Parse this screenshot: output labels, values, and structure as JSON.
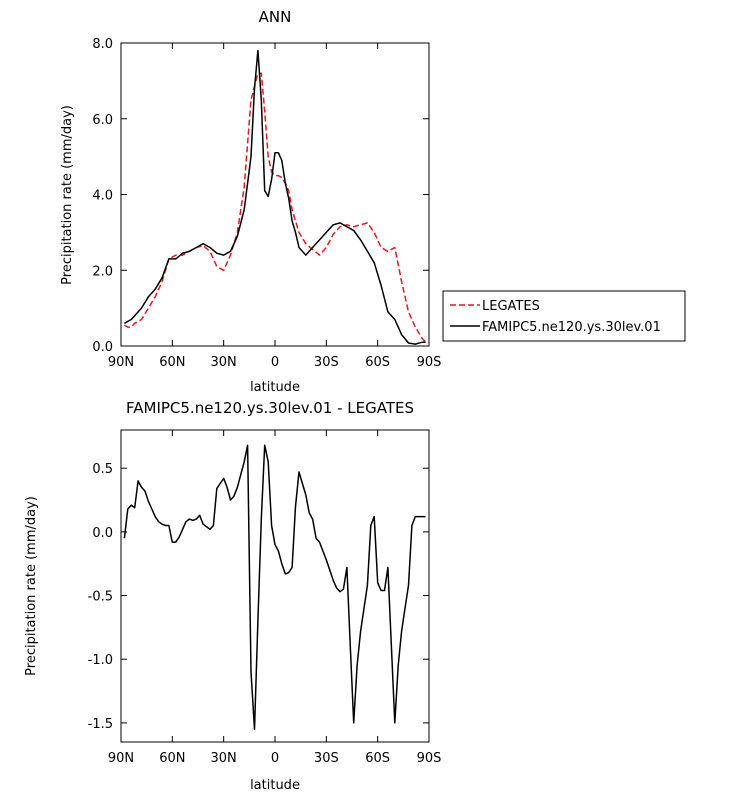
{
  "chart_data": [
    {
      "type": "line",
      "title": "ANN",
      "xlabel": "latitude",
      "ylabel": "Precipitation rate (mm/day)",
      "xlim": [
        90,
        -90
      ],
      "ylim": [
        0,
        8
      ],
      "x_ticks": [
        90,
        60,
        30,
        0,
        -30,
        -60,
        -90
      ],
      "x_tick_labels": [
        "90N",
        "60N",
        "30N",
        "0",
        "30S",
        "60S",
        "90S"
      ],
      "y_ticks": [
        0,
        2,
        4,
        6,
        8
      ],
      "y_tick_labels": [
        "0.0",
        "2.0",
        "4.0",
        "6.0",
        "8.0"
      ],
      "legend": {
        "placement": "outside-right",
        "entries": [
          {
            "label": "LEGATES",
            "color": "#e8141e",
            "style": "dashed"
          },
          {
            "label": "FAMIPC5.ne120.ys.30lev.01",
            "color": "#000000",
            "style": "solid"
          }
        ]
      },
      "series": [
        {
          "name": "LEGATES",
          "color": "#e8141e",
          "dash": true,
          "x": [
            88,
            86,
            84,
            82,
            78,
            74,
            70,
            66,
            62,
            58,
            54,
            50,
            46,
            42,
            38,
            34,
            30,
            26,
            22,
            18,
            14,
            10,
            8,
            6,
            4,
            2,
            0,
            -2,
            -4,
            -6,
            -8,
            -10,
            -12,
            -14,
            -18,
            -22,
            -26,
            -30,
            -34,
            -38,
            -42,
            -46,
            -50,
            -54,
            -58,
            -62,
            -66,
            -70,
            -74,
            -78,
            -82,
            -86,
            -89
          ],
          "y": [
            0.55,
            0.5,
            0.5,
            0.6,
            0.7,
            1.0,
            1.3,
            1.7,
            2.3,
            2.4,
            2.4,
            2.5,
            2.6,
            2.65,
            2.5,
            2.1,
            2.0,
            2.4,
            3.0,
            4.2,
            6.5,
            7.2,
            7.2,
            6.2,
            5.0,
            4.6,
            4.5,
            4.5,
            4.45,
            4.3,
            4.1,
            3.6,
            3.3,
            3.0,
            2.7,
            2.55,
            2.4,
            2.6,
            2.95,
            3.15,
            3.2,
            3.15,
            3.2,
            3.25,
            3.0,
            2.6,
            2.5,
            2.6,
            1.7,
            0.9,
            0.5,
            0.2,
            0.05
          ]
        },
        {
          "name": "FAMIPC5.ne120.ys.30lev.01",
          "color": "#000000",
          "dash": false,
          "x": [
            88,
            86,
            84,
            82,
            78,
            74,
            70,
            66,
            62,
            58,
            54,
            50,
            46,
            42,
            38,
            34,
            30,
            26,
            22,
            18,
            14,
            12,
            10,
            8,
            6,
            4,
            2,
            0,
            -2,
            -4,
            -6,
            -8,
            -10,
            -12,
            -14,
            -18,
            -22,
            -26,
            -30,
            -34,
            -38,
            -42,
            -46,
            -50,
            -54,
            -58,
            -62,
            -66,
            -70,
            -74,
            -78,
            -82,
            -86,
            -88
          ],
          "y": [
            0.6,
            0.65,
            0.7,
            0.8,
            1.0,
            1.3,
            1.5,
            1.8,
            2.3,
            2.3,
            2.45,
            2.5,
            2.6,
            2.7,
            2.6,
            2.45,
            2.4,
            2.5,
            2.9,
            3.6,
            5.0,
            6.8,
            7.8,
            6.5,
            4.1,
            3.95,
            4.4,
            5.1,
            5.1,
            4.9,
            4.3,
            3.9,
            3.3,
            3.0,
            2.6,
            2.4,
            2.6,
            2.8,
            3.0,
            3.2,
            3.25,
            3.15,
            3.05,
            2.8,
            2.5,
            2.2,
            1.6,
            0.9,
            0.7,
            0.3,
            0.08,
            0.05,
            0.1,
            0.1
          ]
        }
      ]
    },
    {
      "type": "line",
      "title": "FAMIPC5.ne120.ys.30lev.01 - LEGATES",
      "xlabel": "latitude",
      "ylabel": "Precipitation rate (mm/day)",
      "xlim": [
        90,
        -90
      ],
      "ylim": [
        -1.65,
        0.8
      ],
      "x_ticks": [
        90,
        60,
        30,
        0,
        -30,
        -60,
        -90
      ],
      "x_tick_labels": [
        "90N",
        "60N",
        "30N",
        "0",
        "30S",
        "60S",
        "90S"
      ],
      "y_ticks": [
        0.5,
        0.0,
        -0.5,
        -1.0,
        -1.5
      ],
      "y_tick_labels": [
        "0.5",
        "0.0",
        "-0.5",
        "-1.0",
        "-1.5"
      ],
      "series": [
        {
          "name": "",
          "color": "#000000",
          "dash": false,
          "x": [
            88,
            86,
            84,
            82,
            80,
            78,
            76,
            74,
            72,
            70,
            68,
            66,
            64,
            62,
            60,
            58,
            56,
            54,
            52,
            50,
            48,
            46,
            44,
            42,
            40,
            38,
            36,
            34,
            32,
            30,
            28,
            26,
            24,
            22,
            20,
            18,
            16,
            14,
            12,
            10,
            8,
            6,
            4,
            2,
            0,
            -2,
            -4,
            -6,
            -8,
            -10,
            -12,
            -14,
            -16,
            -18,
            -20,
            -22,
            -24,
            -26,
            -28,
            -30,
            -32,
            -34,
            -36,
            -38,
            -40,
            -42,
            -44,
            -46,
            -48,
            -50,
            -52,
            -54,
            -56,
            -58,
            -60,
            -62,
            -64,
            -66,
            -68,
            -70,
            -72,
            -74,
            -76,
            -78,
            -80,
            -82,
            -84,
            -86,
            -88
          ],
          "y": [
            -0.05,
            0.18,
            0.21,
            0.19,
            0.4,
            0.35,
            0.32,
            0.24,
            0.18,
            0.12,
            0.08,
            0.06,
            0.05,
            0.05,
            -0.08,
            -0.08,
            -0.04,
            0.02,
            0.08,
            0.1,
            0.09,
            0.1,
            0.13,
            0.06,
            0.04,
            0.02,
            0.05,
            0.34,
            0.38,
            0.42,
            0.35,
            0.25,
            0.28,
            0.35,
            0.45,
            0.55,
            0.68,
            -1.1,
            -1.55,
            -0.7,
            0.1,
            0.68,
            0.55,
            0.05,
            -0.1,
            -0.15,
            -0.25,
            -0.33,
            -0.32,
            -0.28,
            0.2,
            0.47,
            0.38,
            0.29,
            0.15,
            0.1,
            -0.05,
            -0.08,
            -0.15,
            -0.22,
            -0.3,
            -0.38,
            -0.44,
            -0.47,
            -0.45,
            -0.28,
            -0.9,
            -1.5,
            -1.05,
            -0.78,
            -0.6,
            -0.42,
            0.05,
            0.12,
            -0.4,
            -0.46,
            -0.46,
            -0.28,
            -0.9,
            -1.5,
            -1.05,
            -0.78,
            -0.6,
            -0.42,
            0.05,
            0.12,
            0.12,
            0.12,
            0.12
          ]
        }
      ]
    }
  ]
}
